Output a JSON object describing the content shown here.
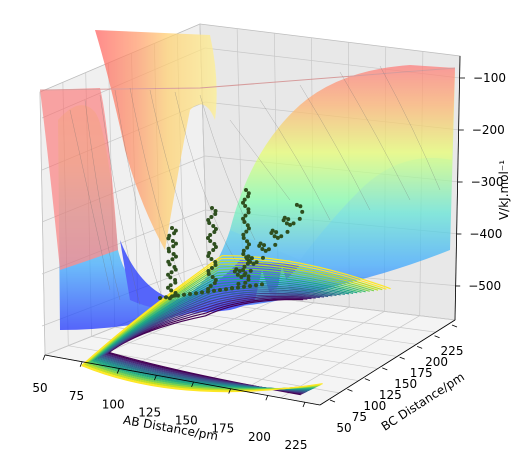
{
  "chart_data": {
    "type": "surface",
    "title": "",
    "xlabel": "AB Distance/pm",
    "ylabel": "BC Distance/pm",
    "zlabel": "V/kJ.mol⁻¹",
    "xticks": [
      "50",
      "75",
      "100",
      "125",
      "150",
      "175",
      "200",
      "225"
    ],
    "yticks": [
      "50",
      "75",
      "100",
      "125",
      "150",
      "175",
      "200",
      "225"
    ],
    "zticks": [
      "−100",
      "−200",
      "−300",
      "−400",
      "−500"
    ],
    "xlim": [
      50,
      240
    ],
    "ylim": [
      50,
      240
    ],
    "zlim": [
      -560,
      -60
    ],
    "surface_colormap": "jet",
    "contour_colormap": "viridis",
    "surface_bands": [
      {
        "z_min": -560,
        "z_max": -480,
        "color": "#1f3cff"
      },
      {
        "z_min": -480,
        "z_max": -430,
        "color": "#2fa8ff"
      },
      {
        "z_min": -430,
        "z_max": -380,
        "color": "#5fe6d6"
      },
      {
        "z_min": -380,
        "z_max": -330,
        "color": "#9cff9c"
      },
      {
        "z_min": -330,
        "z_max": -280,
        "color": "#d6ff6a"
      },
      {
        "z_min": -280,
        "z_max": -230,
        "color": "#fff06a"
      },
      {
        "z_min": -230,
        "z_max": -180,
        "color": "#ffd27a"
      },
      {
        "z_min": -180,
        "z_max": -130,
        "color": "#ffb070"
      },
      {
        "z_min": -130,
        "z_max": -60,
        "color": "#ff8080"
      }
    ],
    "trajectory": {
      "color": "#2f4f1f",
      "marker": "dot"
    },
    "grid": true
  }
}
